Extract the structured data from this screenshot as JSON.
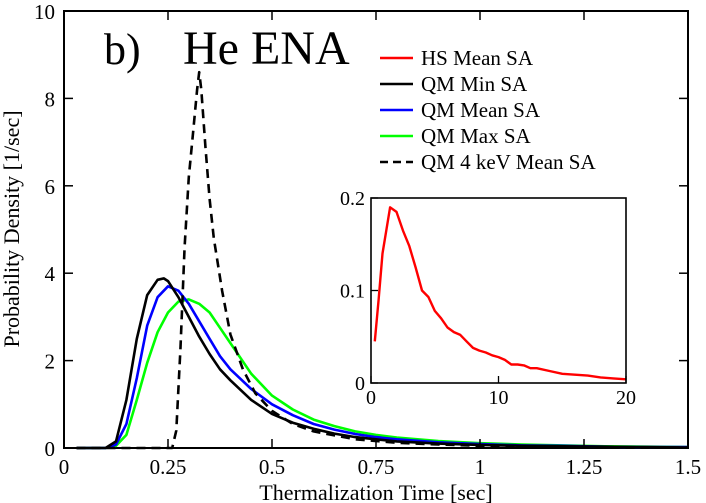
{
  "chart_data": {
    "type": "line",
    "panel_label": "b)",
    "title": "He ENA",
    "xlabel": "Thermalization Time [sec]",
    "ylabel": "Probability Density [1/sec]",
    "xlim": [
      0,
      1.5
    ],
    "ylim": [
      0,
      10
    ],
    "xticks": [
      0,
      0.25,
      0.5,
      0.75,
      1,
      1.25,
      1.5
    ],
    "xtick_labels": [
      "0",
      "0.25",
      "0.5",
      "0.75",
      "1",
      "1.25",
      "1.5"
    ],
    "yticks": [
      0,
      2,
      4,
      6,
      8,
      10
    ],
    "ytick_labels": [
      "0",
      "2",
      "4",
      "6",
      "8",
      "10"
    ],
    "legend": [
      {
        "label": "HS Mean SA",
        "color": "#ff0000",
        "dash": false
      },
      {
        "label": "QM Min SA",
        "color": "#000000",
        "dash": false
      },
      {
        "label": "QM Mean SA",
        "color": "#0000ff",
        "dash": false
      },
      {
        "label": "QM Max SA",
        "color": "#00ff00",
        "dash": false
      },
      {
        "label": "QM 4 keV Mean SA",
        "color": "#000000",
        "dash": true
      }
    ],
    "series": [
      {
        "name": "QM Max SA",
        "color": "#00ff00",
        "dash": false,
        "x": [
          0.03,
          0.1,
          0.125,
          0.15,
          0.175,
          0.2,
          0.225,
          0.25,
          0.275,
          0.3,
          0.325,
          0.35,
          0.375,
          0.4,
          0.45,
          0.5,
          0.55,
          0.6,
          0.65,
          0.7,
          0.75,
          0.8,
          0.9,
          1.0,
          1.1,
          1.2,
          1.3,
          1.4,
          1.5
        ],
        "y": [
          0.0,
          0.0,
          0.05,
          0.3,
          1.1,
          1.95,
          2.65,
          3.1,
          3.35,
          3.4,
          3.3,
          3.1,
          2.75,
          2.4,
          1.7,
          1.2,
          0.88,
          0.65,
          0.5,
          0.38,
          0.3,
          0.24,
          0.16,
          0.11,
          0.08,
          0.06,
          0.04,
          0.03,
          0.02
        ]
      },
      {
        "name": "QM Mean SA",
        "color": "#0000ff",
        "dash": false,
        "x": [
          0.03,
          0.1,
          0.125,
          0.15,
          0.175,
          0.2,
          0.225,
          0.25,
          0.275,
          0.3,
          0.325,
          0.35,
          0.375,
          0.4,
          0.45,
          0.5,
          0.55,
          0.6,
          0.65,
          0.7,
          0.75,
          0.8,
          0.9,
          1.0,
          1.1,
          1.2,
          1.3,
          1.4,
          1.5
        ],
        "y": [
          0.0,
          0.0,
          0.08,
          0.55,
          1.6,
          2.8,
          3.45,
          3.7,
          3.6,
          3.3,
          2.9,
          2.5,
          2.1,
          1.8,
          1.35,
          1.0,
          0.75,
          0.55,
          0.42,
          0.32,
          0.25,
          0.2,
          0.13,
          0.09,
          0.06,
          0.05,
          0.03,
          0.02,
          0.02
        ]
      },
      {
        "name": "QM Min SA",
        "color": "#000000",
        "dash": false,
        "x": [
          0.03,
          0.1,
          0.125,
          0.15,
          0.175,
          0.2,
          0.225,
          0.24,
          0.25,
          0.275,
          0.3,
          0.325,
          0.35,
          0.375,
          0.4,
          0.45,
          0.5,
          0.55,
          0.6,
          0.65,
          0.7,
          0.75,
          0.8,
          0.9,
          1.0,
          1.1,
          1.2,
          1.3,
          1.4,
          1.5
        ],
        "y": [
          0.0,
          0.0,
          0.15,
          1.1,
          2.5,
          3.5,
          3.85,
          3.88,
          3.82,
          3.45,
          3.0,
          2.55,
          2.15,
          1.8,
          1.55,
          1.1,
          0.78,
          0.58,
          0.44,
          0.33,
          0.25,
          0.2,
          0.15,
          0.1,
          0.07,
          0.05,
          0.04,
          0.03,
          0.02,
          0.01
        ]
      },
      {
        "name": "QM 4 keV Mean SA",
        "color": "#000000",
        "dash": true,
        "x": [
          0.03,
          0.26,
          0.27,
          0.28,
          0.29,
          0.3,
          0.31,
          0.32,
          0.325,
          0.33,
          0.34,
          0.35,
          0.36,
          0.38,
          0.4,
          0.43,
          0.46,
          0.5,
          0.55,
          0.6,
          0.7,
          0.8,
          0.9,
          1.0,
          1.2,
          1.5
        ],
        "y": [
          0.0,
          0.0,
          0.4,
          2.3,
          4.6,
          6.2,
          7.2,
          8.2,
          8.6,
          8.2,
          6.9,
          5.7,
          4.8,
          3.6,
          2.6,
          1.8,
          1.25,
          0.85,
          0.55,
          0.38,
          0.2,
          0.12,
          0.08,
          0.05,
          0.02,
          0.01
        ]
      }
    ],
    "inset": {
      "type": "line",
      "xlim": [
        0,
        20
      ],
      "ylim": [
        0,
        0.2
      ],
      "xticks": [
        0,
        10,
        20
      ],
      "xtick_labels": [
        "0",
        "10",
        "20"
      ],
      "yticks": [
        0,
        0.1,
        0.2
      ],
      "ytick_labels": [
        "0",
        "0.1",
        "0.2"
      ],
      "series": [
        {
          "name": "HS Mean SA",
          "color": "#ff0000",
          "dash": false,
          "x": [
            0.3,
            0.6,
            0.9,
            1.2,
            1.5,
            2.0,
            2.5,
            3.0,
            3.5,
            4.0,
            4.5,
            5.0,
            5.5,
            6.0,
            6.5,
            7.0,
            7.5,
            8.0,
            8.5,
            9.0,
            9.5,
            10.0,
            10.5,
            11.0,
            11.5,
            12.0,
            12.5,
            13.0,
            14.0,
            15.0,
            16.0,
            17.0,
            18.0,
            19.0,
            20.0
          ],
          "y": [
            0.045,
            0.09,
            0.14,
            0.165,
            0.19,
            0.185,
            0.165,
            0.148,
            0.125,
            0.1,
            0.093,
            0.078,
            0.07,
            0.06,
            0.055,
            0.052,
            0.045,
            0.038,
            0.035,
            0.033,
            0.03,
            0.028,
            0.025,
            0.02,
            0.02,
            0.019,
            0.016,
            0.016,
            0.013,
            0.01,
            0.009,
            0.008,
            0.006,
            0.005,
            0.004
          ]
        }
      ]
    }
  }
}
